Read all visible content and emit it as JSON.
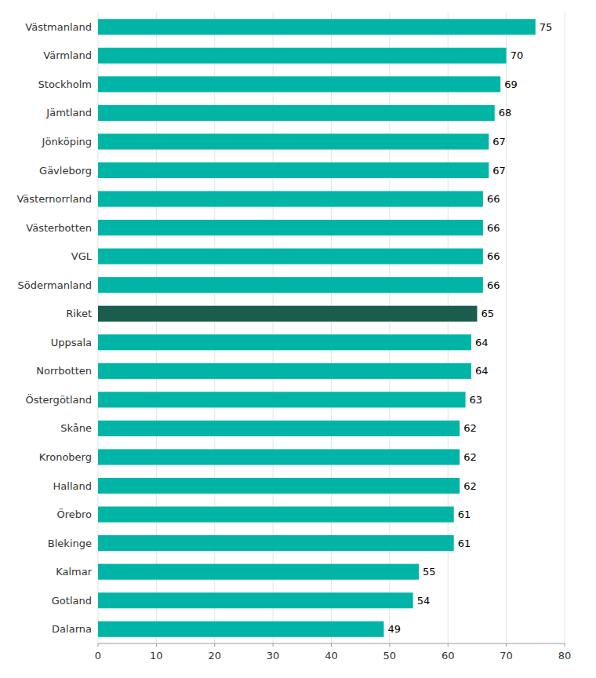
{
  "chart_data": {
    "type": "bar",
    "orientation": "horizontal",
    "categories": [
      "Västmanland",
      "Värmland",
      "Stockholm",
      "Jämtland",
      "Jönköping",
      "Gävleborg",
      "Västernorrland",
      "Västerbotten",
      "VGL",
      "Södermanland",
      "Riket",
      "Uppsala",
      "Norrbotten",
      "Östergötland",
      "Skåne",
      "Kronoberg",
      "Halland",
      "Örebro",
      "Blekinge",
      "Kalmar",
      "Gotland",
      "Dalarna"
    ],
    "values": [
      75,
      70,
      69,
      68,
      67,
      67,
      66,
      66,
      66,
      66,
      65,
      64,
      64,
      63,
      62,
      62,
      62,
      61,
      61,
      55,
      54,
      49
    ],
    "colors": [
      "#00b5a5",
      "#00b5a5",
      "#00b5a5",
      "#00b5a5",
      "#00b5a5",
      "#00b5a5",
      "#00b5a5",
      "#00b5a5",
      "#00b5a5",
      "#00b5a5",
      "#1a5c4e",
      "#00b5a5",
      "#00b5a5",
      "#00b5a5",
      "#00b5a5",
      "#00b5a5",
      "#00b5a5",
      "#00b5a5",
      "#00b5a5",
      "#00b5a5",
      "#00b5a5",
      "#00b5a5"
    ],
    "xlim": [
      0,
      80
    ],
    "xticks": [
      0,
      10,
      20,
      30,
      40,
      50,
      60,
      70,
      80
    ],
    "grid": true,
    "data_labels": true
  }
}
